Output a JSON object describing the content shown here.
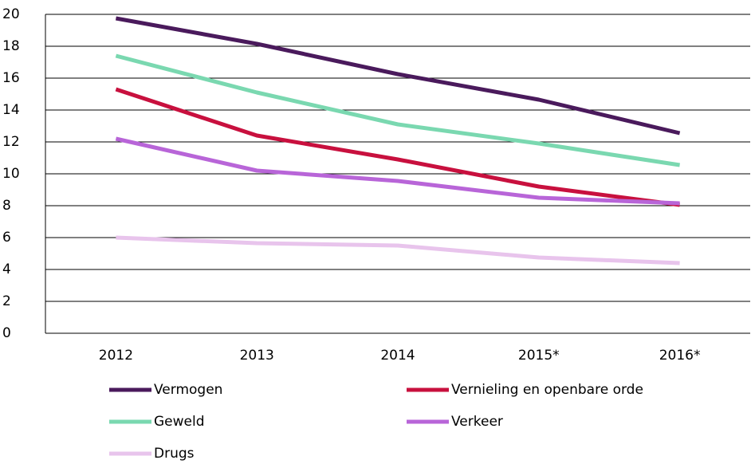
{
  "chart_data": {
    "type": "line",
    "categories": [
      "2012",
      "2013",
      "2014",
      "2015*",
      "2016*"
    ],
    "series": [
      {
        "name": "Vermogen",
        "color": "#4a1a5c",
        "values": [
          19.75,
          18.15,
          16.25,
          14.65,
          12.55
        ]
      },
      {
        "name": "Vernieling en openbare orde",
        "color": "#c8103e",
        "values": [
          15.3,
          12.4,
          10.9,
          9.2,
          8.05
        ]
      },
      {
        "name": "Geweld",
        "color": "#7ad8b0",
        "values": [
          17.4,
          15.1,
          13.1,
          11.9,
          10.55
        ]
      },
      {
        "name": "Verkeer",
        "color": "#b865d8",
        "values": [
          12.2,
          10.2,
          9.55,
          8.5,
          8.15
        ]
      },
      {
        "name": "Drugs",
        "color": "#e8c4ec",
        "values": [
          6.0,
          5.65,
          5.5,
          4.75,
          4.4
        ]
      }
    ],
    "ylim": [
      0,
      20
    ],
    "yticks": [
      0,
      2,
      4,
      6,
      8,
      10,
      12,
      14,
      16,
      18,
      20
    ],
    "grid": true
  }
}
